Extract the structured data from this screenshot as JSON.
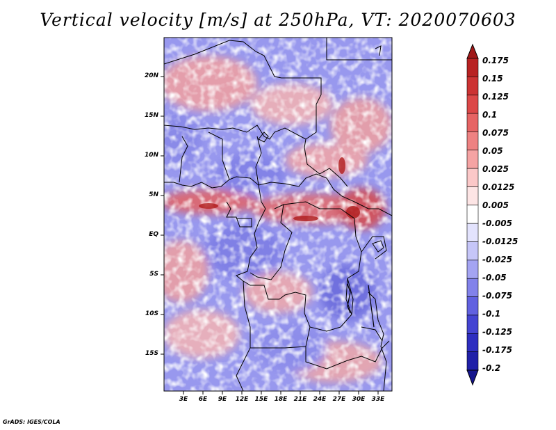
{
  "title": "Vertical velocity [m/s] at 250hPa, VT: 2020070603",
  "credit": "GrADS: IGES/COLA",
  "latitude_labels": [
    "20N",
    "15N",
    "10N",
    "5N",
    "EQ",
    "5S",
    "10S",
    "15S"
  ],
  "longitude_labels": [
    "3E",
    "6E",
    "9E",
    "12E",
    "15E",
    "18E",
    "21E",
    "24E",
    "27E",
    "30E",
    "33E"
  ],
  "colorbar": {
    "labels": [
      "0.175",
      "0.15",
      "0.125",
      "0.1",
      "0.075",
      "0.05",
      "0.025",
      "0.0125",
      "0.005",
      "-0.005",
      "-0.0125",
      "-0.025",
      "-0.05",
      "-0.075",
      "-0.1",
      "-0.125",
      "-0.175",
      "-0.2"
    ],
    "colors": [
      "#a01818",
      "#b82222",
      "#cc3333",
      "#dc4848",
      "#e66464",
      "#ee8282",
      "#f5a3a3",
      "#fbc8c8",
      "#fde5e5",
      "#ffffff",
      "#e3e3fd",
      "#c6c6f8",
      "#a4a4f2",
      "#8282ea",
      "#6161e0",
      "#4444d2",
      "#2e2ec0",
      "#2020a8",
      "#14148c"
    ]
  }
}
